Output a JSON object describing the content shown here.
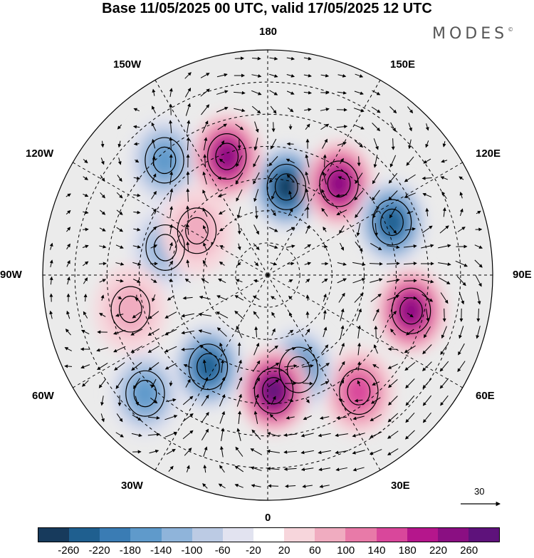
{
  "title": "Base 11/05/2025 00 UTC, valid 17/05/2025 12 UTC",
  "brand": "MODES",
  "brand_mark": "©",
  "longitude_labels": [
    "180",
    "150E",
    "120E",
    "90E",
    "60E",
    "30E",
    "0",
    "30W",
    "60W",
    "90W",
    "120W",
    "150W"
  ],
  "reference_vector": {
    "label": "30",
    "icon": "arrow-right-icon"
  },
  "colorbar": {
    "ticks": [
      "-260",
      "-220",
      "-180",
      "-140",
      "-100",
      "-60",
      "-20",
      "20",
      "60",
      "100",
      "140",
      "180",
      "220",
      "260"
    ],
    "colors": [
      "#173a5c",
      "#1f5f8f",
      "#3a7cb4",
      "#5f9acb",
      "#8fb4da",
      "#bccbe4",
      "#e2e3f0",
      "#ffffff",
      "#f7d6dc",
      "#f0acc0",
      "#e87aa8",
      "#d9479b",
      "#b5168c",
      "#8a0f82",
      "#5e127b"
    ]
  },
  "anomaly_centers": [
    {
      "lon": 168,
      "lat": 62,
      "value": -240
    },
    {
      "lon": 142,
      "lat": 54,
      "value": 230
    },
    {
      "lon": 113,
      "lat": 48,
      "value": -220
    },
    {
      "lon": 76,
      "lat": 44,
      "value": 220
    },
    {
      "lon": 38,
      "lat": 44,
      "value": 140
    },
    {
      "lon": 18,
      "lat": 59,
      "value": -160
    },
    {
      "lon": 3,
      "lat": 54,
      "value": 260
    },
    {
      "lon": 327,
      "lat": 56,
      "value": -220
    },
    {
      "lon": 314,
      "lat": 37,
      "value": -140
    },
    {
      "lon": 255,
      "lat": 57,
      "value": -100
    },
    {
      "lon": 222,
      "lat": 42,
      "value": -140
    },
    {
      "lon": 199,
      "lat": 51,
      "value": 200
    },
    {
      "lon": 284,
      "lat": 46,
      "value": 60
    },
    {
      "lon": 238,
      "lat": 64,
      "value": 60
    }
  ]
}
